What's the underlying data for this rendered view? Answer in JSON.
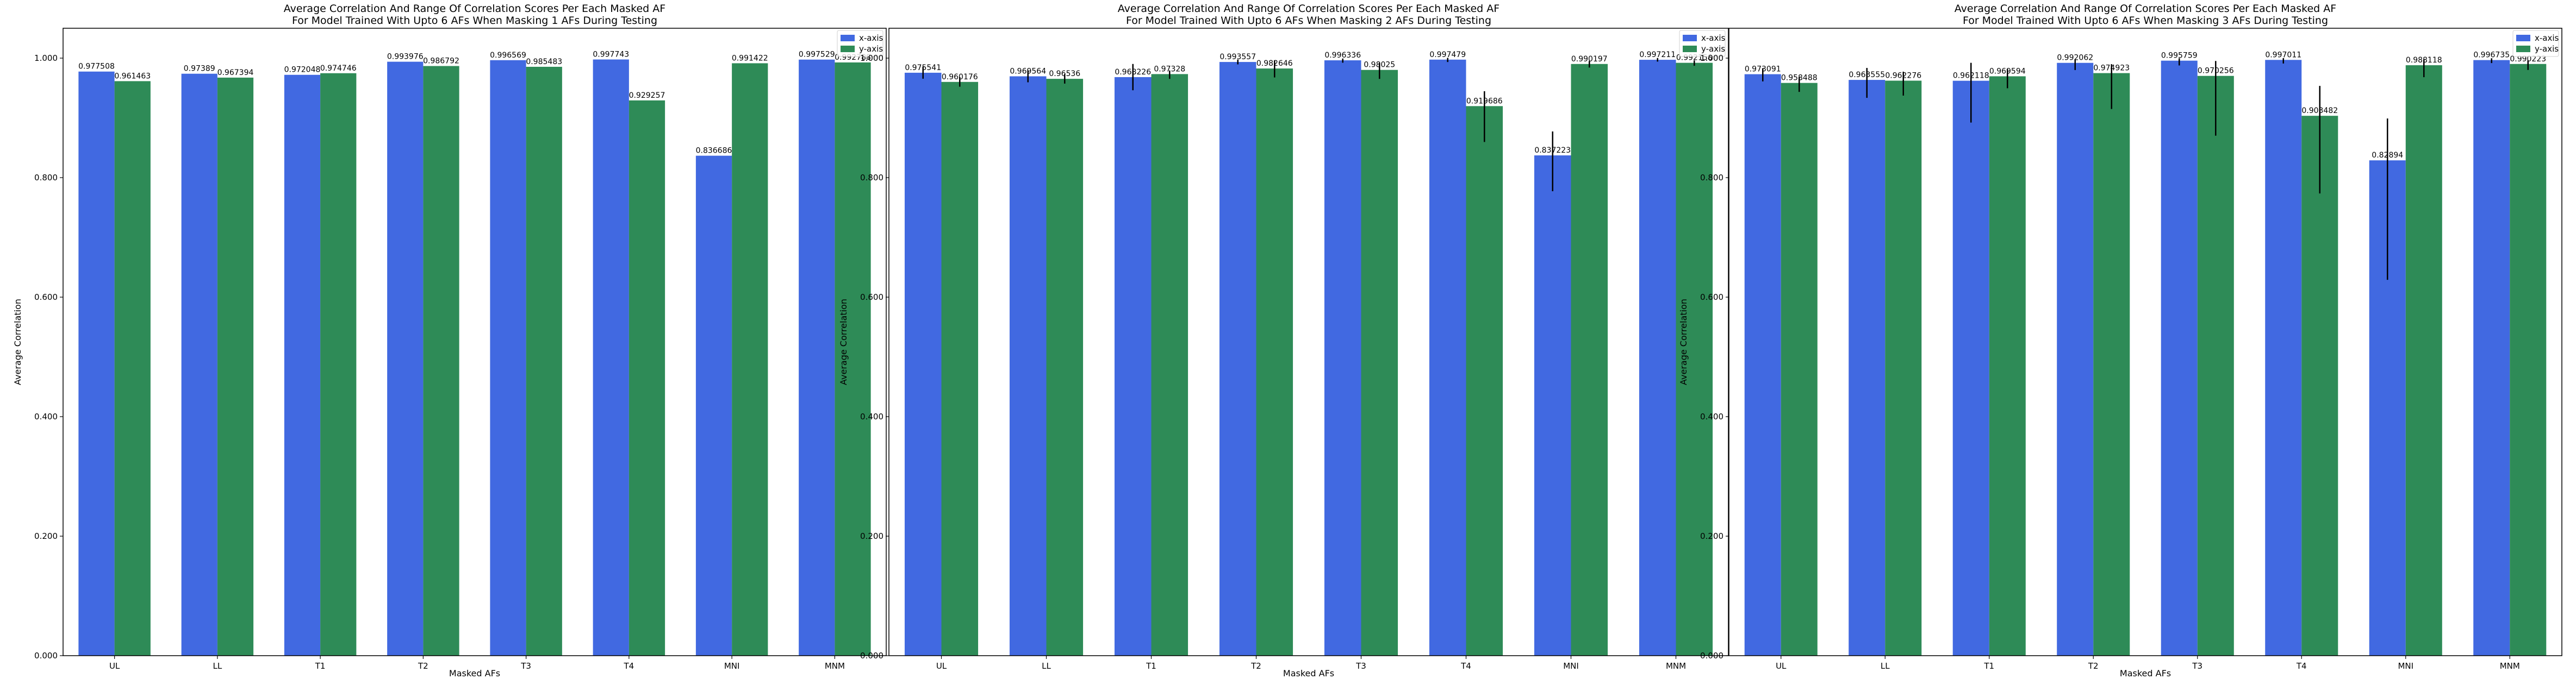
{
  "colors": {
    "x_axis": "#4169e1",
    "y_axis": "#2e8b57",
    "error_bar": "#000000"
  },
  "chart_data": [
    {
      "type": "bar",
      "title": "Average Correlation And Range Of Correlation Scores Per Each Masked AF",
      "subtitle": "For Model Trained With Upto 6 AFs When Masking 1 AFs During Testing",
      "xlabel": "Masked AFs",
      "ylabel": "Average Correlation",
      "categories": [
        "UL",
        "LL",
        "T1",
        "T2",
        "T3",
        "T4",
        "MNI",
        "MNM"
      ],
      "ylim": [
        0,
        1.05
      ],
      "yticks": [
        0.0,
        0.2,
        0.4,
        0.6,
        0.8,
        1.0
      ],
      "ytick_labels": [
        "0.000",
        "0.200",
        "0.400",
        "0.600",
        "0.800",
        "1.000"
      ],
      "grid": false,
      "legend": "top-right",
      "series": [
        {
          "name": "x-axis",
          "values": [
            0.977508,
            0.97389,
            0.972048,
            0.993976,
            0.996569,
            0.997743,
            0.836686,
            0.997529
          ],
          "labels": [
            "0.977508",
            "0.97389",
            "0.972048",
            "0.993976",
            "0.996569",
            "0.997743",
            "0.836686",
            "0.997529"
          ],
          "err": [
            0,
            0,
            0,
            0,
            0,
            0,
            0,
            0
          ]
        },
        {
          "name": "y-axis",
          "values": [
            0.961463,
            0.967394,
            0.974746,
            0.986792,
            0.985483,
            0.929257,
            0.991422,
            0.992788
          ],
          "labels": [
            "0.961463",
            "0.967394",
            "0.974746",
            "0.986792",
            "0.985483",
            "0.929257",
            "0.991422",
            "0.992788"
          ],
          "err": [
            0,
            0,
            0,
            0,
            0,
            0,
            0,
            0
          ]
        }
      ]
    },
    {
      "type": "bar",
      "title": "Average Correlation And Range Of Correlation Scores Per Each Masked AF",
      "subtitle": "For Model Trained With Upto 6 AFs When Masking 2 AFs During Testing",
      "xlabel": "Masked AFs",
      "ylabel": "Average Correlation",
      "categories": [
        "UL",
        "LL",
        "T1",
        "T2",
        "T3",
        "T4",
        "MNI",
        "MNM"
      ],
      "ylim": [
        0,
        1.05
      ],
      "yticks": [
        0.0,
        0.2,
        0.4,
        0.6,
        0.8,
        1.0
      ],
      "ytick_labels": [
        "0.000",
        "0.200",
        "0.400",
        "0.600",
        "0.800",
        "1.000"
      ],
      "grid": false,
      "legend": "top-right",
      "series": [
        {
          "name": "x-axis",
          "values": [
            0.975541,
            0.969564,
            0.968226,
            0.993557,
            0.996336,
            0.997479,
            0.837223,
            0.997211
          ],
          "labels": [
            "0.975541",
            "0.969564",
            "0.968226",
            "0.993557",
            "0.996336",
            "0.997479",
            "0.837223",
            "0.997211"
          ],
          "err": [
            [
              0.01,
              0.01
            ],
            [
              0.01,
              0.01
            ],
            [
              0.022,
              0.022
            ],
            [
              0.004,
              0.004
            ],
            [
              0.004,
              0.003
            ],
            [
              0.004,
              0.003
            ],
            [
              0.06,
              0.04
            ],
            [
              0.003,
              0.003
            ]
          ]
        },
        {
          "name": "y-axis",
          "values": [
            0.960176,
            0.96536,
            0.97328,
            0.982646,
            0.98025,
            0.919686,
            0.990197,
            0.992158
          ],
          "labels": [
            "0.960176",
            "0.96536",
            "0.97328",
            "0.982646",
            "0.98025",
            "0.919686",
            "0.990197",
            "0.992158"
          ],
          "err": [
            [
              0.008,
              0.008
            ],
            [
              0.008,
              0.008
            ],
            [
              0.008,
              0.006
            ],
            [
              0.015,
              0.013
            ],
            [
              0.015,
              0.012
            ],
            [
              0.06,
              0.025
            ],
            [
              0.006,
              0.005
            ],
            [
              0.005,
              0.004
            ]
          ]
        }
      ]
    },
    {
      "type": "bar",
      "title": "Average Correlation And Range Of Correlation Scores Per Each Masked AF",
      "subtitle": "For Model Trained With Upto 6 AFs When Masking 3 AFs During Testing",
      "xlabel": "Masked AFs",
      "ylabel": "Average Correlation",
      "categories": [
        "UL",
        "LL",
        "T1",
        "T2",
        "T3",
        "T4",
        "MNI",
        "MNM"
      ],
      "ylim": [
        0,
        1.05
      ],
      "yticks": [
        0.0,
        0.2,
        0.4,
        0.6,
        0.8,
        1.0
      ],
      "ytick_labels": [
        "0.000",
        "0.200",
        "0.400",
        "0.600",
        "0.800",
        "1.000"
      ],
      "grid": false,
      "legend": "top-right",
      "series": [
        {
          "name": "x-axis",
          "values": [
            0.973091,
            0.963555,
            0.962118,
            0.992062,
            0.995759,
            0.997011,
            0.82894,
            0.996735
          ],
          "labels": [
            "0.973091",
            "0.963555",
            "0.962118",
            "0.992062",
            "0.995759",
            "0.997011",
            "0.82894",
            "0.996735"
          ],
          "err": [
            [
              0.012,
              0.01
            ],
            [
              0.03,
              0.02
            ],
            [
              0.07,
              0.03
            ],
            [
              0.012,
              0.006
            ],
            [
              0.008,
              0.004
            ],
            [
              0.006,
              0.003
            ],
            [
              0.2,
              0.07
            ],
            [
              0.005,
              0.003
            ]
          ]
        },
        {
          "name": "y-axis",
          "values": [
            0.958488,
            0.962276,
            0.969594,
            0.974923,
            0.970256,
            0.903482,
            0.988118,
            0.990223
          ],
          "labels": [
            "0.958488",
            "0.962276",
            "0.969594",
            "0.974923",
            "0.970256",
            "0.903482",
            "0.988118",
            "0.990223"
          ],
          "err": [
            [
              0.015,
              0.01
            ],
            [
              0.025,
              0.015
            ],
            [
              0.02,
              0.012
            ],
            [
              0.06,
              0.015
            ],
            [
              0.1,
              0.025
            ],
            [
              0.13,
              0.05
            ],
            [
              0.02,
              0.01
            ],
            [
              0.01,
              0.006
            ]
          ]
        }
      ]
    }
  ]
}
